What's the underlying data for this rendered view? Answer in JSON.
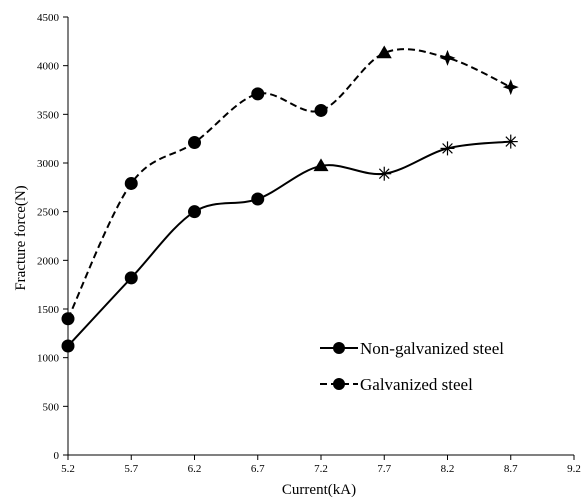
{
  "chart_data": {
    "type": "line",
    "xlabel": "Current(kA)",
    "ylabel": "Fracture force(N)",
    "xlim": [
      5.2,
      9.2
    ],
    "ylim": [
      0,
      4500
    ],
    "xticks": [
      "5.2",
      "5.7",
      "6.2",
      "6.7",
      "7.2",
      "7.7",
      "8.2",
      "8.7",
      "9.2"
    ],
    "yticks": [
      "0",
      "500",
      "1000",
      "1500",
      "2000",
      "2500",
      "3000",
      "3500",
      "4000",
      "4500"
    ],
    "grid": false,
    "legend_position": "bottom-right",
    "series": [
      {
        "name": "Non-galvanized steel",
        "line_style": "solid",
        "color": "#000000",
        "x": [
          5.2,
          5.7,
          6.2,
          6.7,
          7.2,
          7.7,
          8.2,
          8.7
        ],
        "y": [
          1120,
          1820,
          2500,
          2630,
          2970,
          2890,
          3150,
          3220
        ],
        "markers": [
          "circle",
          "circle",
          "circle",
          "circle",
          "triangle",
          "asterisk",
          "asterisk",
          "asterisk"
        ]
      },
      {
        "name": "Galvanized steel",
        "line_style": "dashed",
        "color": "#000000",
        "x": [
          5.2,
          5.7,
          6.2,
          6.7,
          7.2,
          7.7,
          8.2,
          8.7
        ],
        "y": [
          1400,
          2790,
          3210,
          3710,
          3540,
          4130,
          4080,
          3780
        ],
        "markers": [
          "circle",
          "circle",
          "circle",
          "circle",
          "circle",
          "triangle",
          "star4",
          "star4"
        ]
      }
    ]
  }
}
